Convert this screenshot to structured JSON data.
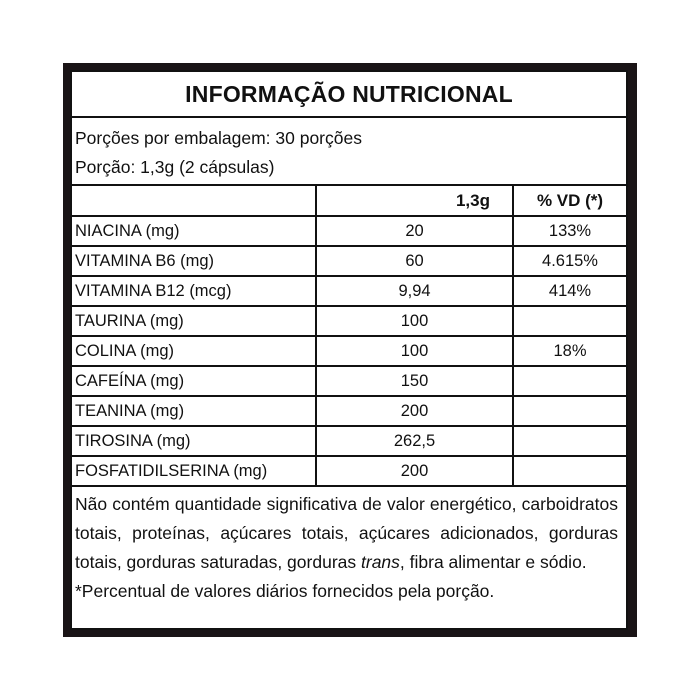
{
  "title": "INFORMAÇÃO NUTRICIONAL",
  "servings_per_package": "Porções por embalagem: 30 porções",
  "serving_size": "Porção: 1,3g (2 cápsulas)",
  "table": {
    "headers": [
      "",
      "1,3g",
      "% VD (*)"
    ],
    "rows": [
      {
        "name": "NIACINA (mg)",
        "value": "20",
        "vd": "133%"
      },
      {
        "name": "VITAMINA B6 (mg)",
        "value": "60",
        "vd": "4.615%"
      },
      {
        "name": "VITAMINA B12 (mcg)",
        "value": "9,94",
        "vd": "414%"
      },
      {
        "name": "TAURINA (mg)",
        "value": "100",
        "vd": ""
      },
      {
        "name": "COLINA (mg)",
        "value": "100",
        "vd": "18%"
      },
      {
        "name": "CAFEÍNA (mg)",
        "value": "150",
        "vd": ""
      },
      {
        "name": "TEANINA (mg)",
        "value": "200",
        "vd": ""
      },
      {
        "name": "TIROSINA (mg)",
        "value": "262,5",
        "vd": ""
      },
      {
        "name": "FOSFATIDILSERINA (mg)",
        "value": "200",
        "vd": ""
      }
    ]
  },
  "footer": {
    "note_before_italic": "Não contém quantidade significativa de valor energético, carboidratos totais, proteínas, açúcares totais, açúcares adicionados, gorduras totais, gorduras saturadas, gorduras ",
    "note_italic": "trans",
    "note_after_italic": ", fibra alimentar e sódio.",
    "footnote": "*Percentual de valores diários fornecidos pela porção."
  }
}
